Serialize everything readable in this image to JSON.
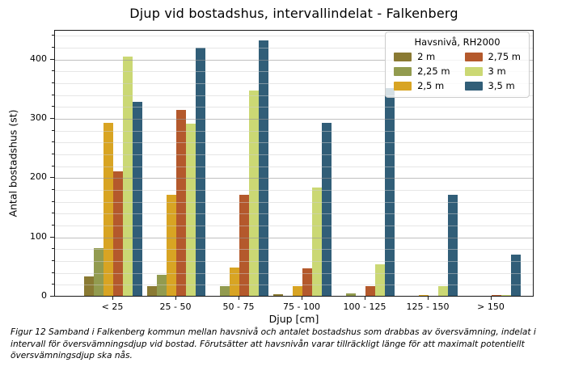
{
  "figure": {
    "caption": "Figur 12 Samband i Falkenberg kommun mellan havsnivå och antalet bostadshus som drabbas av översvämning, indelat i intervall för översvämningsdjup vid bostad. Förutsätter att havsnivån varar tillräckligt länge för att maximalt potentiellt översvämningsdjup ska nås."
  },
  "chart_data": {
    "type": "bar",
    "title": "Djup vid bostadshus, intervallindelat - Falkenberg",
    "xlabel": "Djup [cm]",
    "ylabel": "Antal bostadshus (st)",
    "ylim": [
      0,
      450
    ],
    "yticks": [
      0,
      100,
      200,
      300,
      400
    ],
    "minor_grid_step": 20,
    "grid": "horizontal, major and minor lines",
    "legend": {
      "title": "Havsnivå, RH2000",
      "position": "upper-right",
      "columns": 2
    },
    "categories": [
      "< 25",
      "25 - 50",
      "50 - 75",
      "75 - 100",
      "100 - 125",
      "125 - 150",
      "> 150"
    ],
    "series": [
      {
        "name": "2 m",
        "color": "#8a7a33",
        "values": [
          33,
          16,
          0,
          3,
          0,
          0,
          0
        ]
      },
      {
        "name": "2,25 m",
        "color": "#929b4f",
        "values": [
          80,
          35,
          16,
          0,
          4,
          0,
          0
        ]
      },
      {
        "name": "2,5 m",
        "color": "#d8a423",
        "values": [
          292,
          170,
          48,
          16,
          0,
          2,
          0
        ]
      },
      {
        "name": "2,75 m",
        "color": "#b4592c",
        "values": [
          210,
          313,
          170,
          47,
          16,
          0,
          2
        ]
      },
      {
        "name": "3 m",
        "color": "#cbd874",
        "values": [
          403,
          291,
          347,
          183,
          53,
          16,
          2
        ]
      },
      {
        "name": "3,5 m",
        "color": "#315e78",
        "values": [
          327,
          419,
          431,
          292,
          350,
          170,
          70
        ]
      }
    ]
  }
}
